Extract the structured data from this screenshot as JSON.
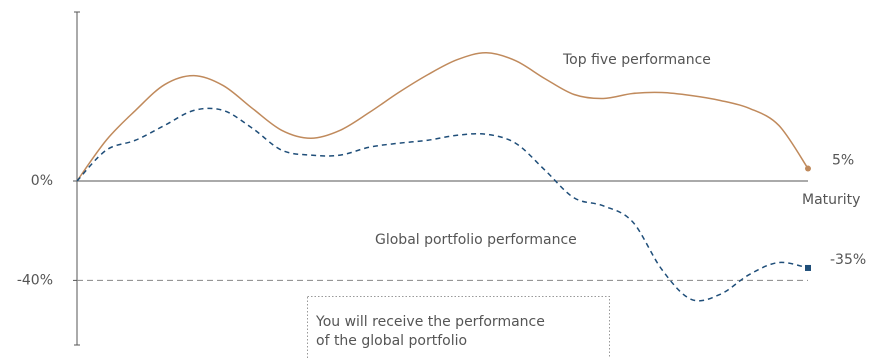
{
  "chart_data": {
    "type": "line",
    "x_label": "Maturity",
    "categories": [
      null,
      null,
      null,
      null,
      null,
      null,
      null,
      null,
      null,
      null,
      null,
      null,
      null,
      null,
      null,
      null,
      null,
      null,
      null,
      null,
      null,
      null,
      null,
      null,
      null,
      null
    ],
    "series": [
      {
        "name": "Top five performance",
        "color": "#c08a5c",
        "dashed": false,
        "values": [
          0,
          16.4,
          28.4,
          38.8,
          42.4,
          38.4,
          29.2,
          20.4,
          17.2,
          20.4,
          27.6,
          35.6,
          42.8,
          48.8,
          51.6,
          48.4,
          41.2,
          34.8,
          33.2,
          35.2,
          35.6,
          34.4,
          32.4,
          29.2,
          22.4,
          5
        ],
        "value_labels": [
          null,
          null,
          null,
          null,
          null,
          null,
          null,
          null,
          null,
          null,
          null,
          null,
          null,
          null,
          null,
          null,
          null,
          null,
          null,
          null,
          null,
          null,
          null,
          null,
          null,
          "5%"
        ]
      },
      {
        "name": "Global portfolio performance",
        "color": "#1f4e79",
        "dashed": true,
        "values": [
          0,
          12.4,
          16.4,
          22.4,
          28.4,
          28.4,
          21.2,
          12.4,
          10.4,
          10.4,
          13.6,
          15.2,
          16.4,
          18.4,
          18.8,
          15.2,
          4.4,
          -6.8,
          -10,
          -16.4,
          -35.6,
          -47.6,
          -45.6,
          -37.6,
          -32.8,
          -35
        ],
        "value_labels": [
          null,
          null,
          null,
          null,
          null,
          null,
          null,
          null,
          null,
          null,
          null,
          null,
          null,
          null,
          null,
          null,
          null,
          null,
          null,
          null,
          null,
          null,
          null,
          null,
          null,
          "-35%"
        ]
      }
    ],
    "ylim": [
      -66,
      68
    ],
    "yticks": [
      {
        "value": 0,
        "label": "0%"
      },
      {
        "value": -40,
        "label": "-40%"
      }
    ],
    "grid": true,
    "annotation": [
      "You will receive the performance",
      "of the global portfolio"
    ]
  }
}
